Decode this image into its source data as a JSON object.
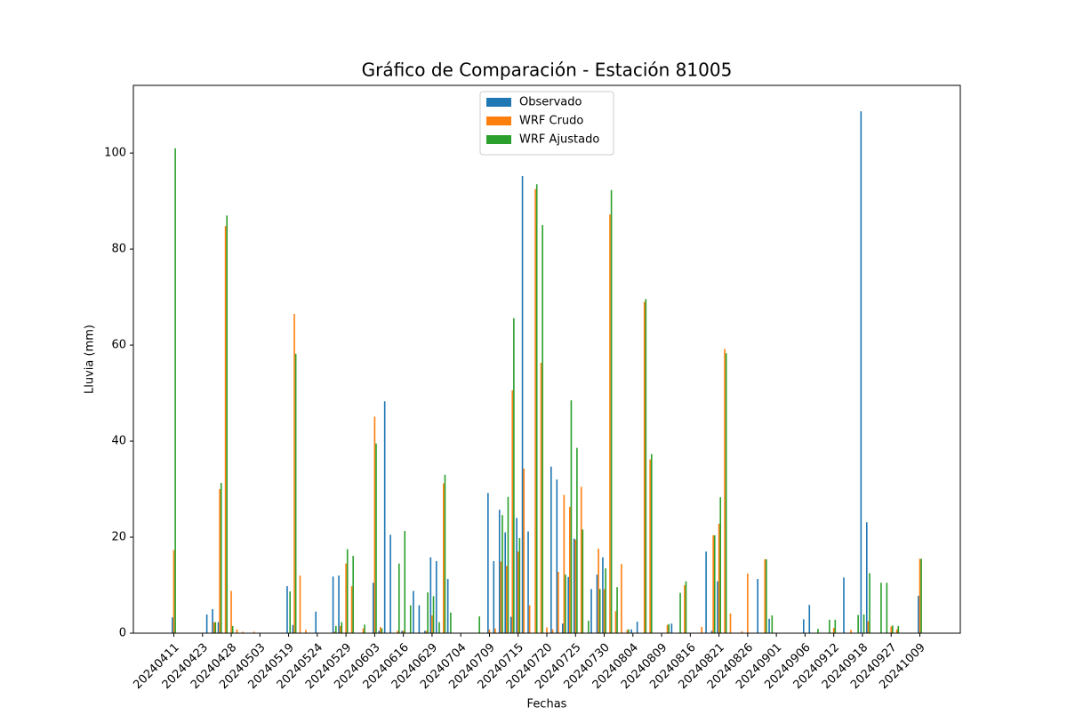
{
  "chart_data": {
    "type": "bar",
    "title": "Gráfico de Comparación - Estación 81005",
    "x_label": "Fechas",
    "y_label": "Lluvia (mm)",
    "legend": "upper center",
    "categories": [
      "20240411",
      null,
      null,
      null,
      null,
      "20240423",
      null,
      null,
      null,
      null,
      "20240428",
      null,
      null,
      null,
      null,
      "20240503",
      null,
      null,
      null,
      null,
      "20240519",
      null,
      null,
      null,
      null,
      "20240524",
      null,
      null,
      null,
      null,
      "20240529",
      null,
      null,
      null,
      null,
      "20240603",
      null,
      null,
      null,
      null,
      "20240616",
      null,
      null,
      null,
      null,
      "20240629",
      null,
      null,
      null,
      null,
      "20240704",
      null,
      null,
      null,
      null,
      "20240709",
      null,
      null,
      null,
      null,
      "20240715",
      null,
      null,
      null,
      null,
      "20240720",
      null,
      null,
      null,
      null,
      "20240725",
      null,
      null,
      null,
      null,
      "20240730",
      null,
      null,
      null,
      null,
      "20240804",
      null,
      null,
      null,
      null,
      "20240809",
      null,
      null,
      null,
      null,
      "20240816",
      null,
      null,
      null,
      null,
      "20240821",
      null,
      null,
      null,
      null,
      "20240826",
      null,
      null,
      null,
      null,
      "20240901",
      null,
      null,
      null,
      null,
      "20240906",
      null,
      null,
      null,
      null,
      "20240912",
      null,
      null,
      null,
      null,
      "20240918",
      null,
      null,
      null,
      null,
      "20240927",
      null,
      null,
      null,
      null,
      "20241009"
    ],
    "series": [
      {
        "name": "Observado",
        "color": "#1f77b4",
        "values": [
          3.3,
          0,
          0,
          0,
          0,
          0,
          3.9,
          5,
          2.3,
          0,
          0,
          0,
          0,
          0,
          0,
          0,
          0,
          0,
          0,
          0,
          9.8,
          1.7,
          0,
          0,
          0,
          4.5,
          0,
          0,
          11.8,
          12,
          0,
          0,
          0,
          0,
          0,
          10.5,
          0.5,
          48.3,
          20.5,
          0,
          0.5,
          0,
          8.8,
          5.8,
          0.5,
          15.8,
          15,
          0,
          11.3,
          0,
          0,
          0,
          0,
          0,
          0,
          29.2,
          15,
          25.7,
          21,
          3.4,
          24,
          95.2,
          21.2,
          0,
          0,
          0,
          34.7,
          32,
          2,
          11.7,
          19.7,
          0,
          0,
          9.2,
          12.2,
          15.8,
          0,
          0,
          0,
          0,
          0.8,
          2.4,
          0,
          0,
          0,
          0,
          0,
          2,
          0,
          0,
          0,
          0,
          0,
          17,
          0.5,
          10.8,
          0,
          0,
          0,
          0,
          0,
          0,
          11.3,
          0,
          3,
          0,
          0,
          0,
          0,
          0,
          2.9,
          5.9,
          0,
          0,
          0,
          0,
          0,
          11.6,
          0,
          0,
          108.7,
          23.1,
          0,
          0,
          0,
          0,
          0,
          0,
          0,
          0,
          7.8
        ]
      },
      {
        "name": "WRF Crudo",
        "color": "#ff7f0e",
        "values": [
          17.3,
          0,
          0,
          0,
          0,
          0,
          0,
          2.3,
          30,
          84.8,
          8.8,
          0.8,
          0.3,
          0,
          0.3,
          0,
          0,
          0,
          0,
          0,
          0,
          66.5,
          12,
          0.7,
          0,
          0,
          0,
          0,
          0.3,
          1.5,
          14.5,
          9.8,
          0,
          1,
          0,
          45.1,
          1.3,
          0,
          0,
          0.5,
          0.5,
          0,
          0,
          0,
          0.5,
          3.7,
          0,
          31.2,
          0,
          0,
          0,
          0,
          0,
          0,
          0,
          0.8,
          1,
          14.9,
          14,
          50.6,
          17,
          34.3,
          5.8,
          92.5,
          56.3,
          1.2,
          0.8,
          12.8,
          28.8,
          26.3,
          19.5,
          30.5,
          0,
          0,
          17.6,
          9.2,
          87.2,
          4.6,
          14.4,
          0.7,
          0,
          0,
          69,
          36.2,
          0,
          0,
          1.7,
          0,
          0,
          10,
          0,
          0,
          1.3,
          0,
          20.4,
          22.8,
          59.2,
          4.1,
          0,
          0.4,
          12.4,
          0,
          0,
          15.4,
          0,
          0,
          0,
          0,
          0,
          0,
          0,
          0,
          0,
          0,
          0,
          1.1,
          0,
          0,
          0.7,
          0,
          0,
          2.5,
          0,
          0,
          0,
          1.4,
          0.8,
          0,
          0,
          0,
          15.5
        ]
      },
      {
        "name": "WRF Ajustado",
        "color": "#2ca02c",
        "values": [
          101,
          0,
          0,
          0,
          0,
          0,
          0,
          2.3,
          31.3,
          87,
          1.5,
          0,
          0,
          0,
          0,
          0,
          0,
          0,
          0,
          0,
          8.7,
          58.2,
          0,
          0,
          0,
          0,
          0,
          0,
          1.5,
          2.3,
          17.5,
          16.1,
          0,
          1.8,
          0,
          39.5,
          1,
          0,
          0,
          14.5,
          21.3,
          5.8,
          0,
          0,
          8.5,
          7.7,
          2.3,
          33,
          4.3,
          0,
          0,
          0,
          0,
          3.5,
          0,
          0,
          0,
          24.6,
          28.4,
          65.6,
          19.8,
          0,
          0,
          93.5,
          85,
          0,
          0,
          0,
          12.2,
          48.5,
          38.6,
          21.6,
          2.6,
          0,
          9.2,
          13.5,
          92.3,
          9.6,
          0,
          0.8,
          0,
          0,
          69.6,
          37.3,
          0,
          0,
          1.9,
          0,
          8.4,
          10.8,
          0,
          0,
          0,
          0,
          20.4,
          28.3,
          58.3,
          0,
          0,
          0,
          0,
          0,
          0,
          15.4,
          3.7,
          0,
          0,
          0,
          0,
          0,
          0,
          0,
          0.9,
          0,
          2.8,
          2.8,
          0,
          0,
          0,
          3.8,
          3.9,
          12.5,
          0,
          10.5,
          10.5,
          1.6,
          1.5,
          0,
          0,
          0,
          15.5
        ]
      }
    ],
    "ylim": [
      0,
      114.1
    ],
    "yticks": [
      0,
      20,
      40,
      60,
      80,
      100
    ],
    "grid": false
  }
}
